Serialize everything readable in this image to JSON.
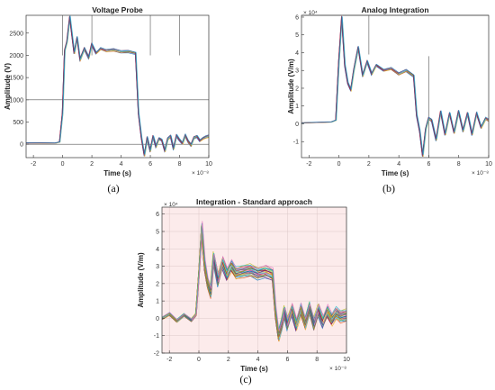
{
  "panel_captions": [
    "(a)",
    "(b)",
    "(c)"
  ],
  "chart_data": [
    {
      "type": "line",
      "title": "Voltage Probe",
      "xlabel": "Time (s)",
      "ylabel": "Amplitude (V)",
      "x_exponent_label": "× 10⁻⁸",
      "y_exponent_label": "",
      "xlim": [
        -2.5,
        10
      ],
      "ylim": [
        -300,
        2900
      ],
      "x_ticks": [
        -2,
        0,
        2,
        4,
        6,
        8,
        10
      ],
      "y_ticks": [
        0,
        500,
        1000,
        1500,
        2000,
        2500
      ],
      "x_tick_labels": [
        "-2",
        "0",
        "2",
        "4",
        "6",
        "8",
        "10"
      ],
      "y_tick_labels": [
        "0",
        "500",
        "1000",
        "1500",
        "2000",
        "2500"
      ],
      "background": "#ffffff",
      "series_colors": [
        "#0072bd",
        "#d95319",
        "#edb120",
        "#7e2f8e",
        "#77ac30",
        "#4dbeee",
        "#a2142f",
        "#1f77b4"
      ],
      "n_series": 8,
      "spread": 25,
      "hlines": [
        0,
        1000
      ],
      "vlines": [
        {
          "x": 0,
          "y_top": 2900,
          "y_bottom": 2000
        },
        {
          "x": 2,
          "y_top": 2900,
          "y_bottom": 2000
        },
        {
          "x": 6,
          "y_top": 2900,
          "y_bottom": 2000
        },
        {
          "x": 8,
          "y_top": 2900,
          "y_bottom": 2000
        }
      ],
      "x": [
        -2.5,
        -1.5,
        -0.5,
        -0.2,
        0,
        0.15,
        0.3,
        0.5,
        0.8,
        1.0,
        1.2,
        1.5,
        1.8,
        2.0,
        2.3,
        2.6,
        3.0,
        3.5,
        4.0,
        4.5,
        5.0,
        5.2,
        5.4,
        5.6,
        5.8,
        6.0,
        6.2,
        6.4,
        6.6,
        6.8,
        7.0,
        7.2,
        7.4,
        7.6,
        7.8,
        8.0,
        8.2,
        8.4,
        8.6,
        8.8,
        9.0,
        9.2,
        9.4,
        9.6,
        9.8,
        10.0
      ],
      "y": [
        30,
        30,
        25,
        50,
        700,
        2100,
        2300,
        2870,
        2050,
        2400,
        1900,
        2150,
        1950,
        2250,
        2050,
        2150,
        2100,
        2120,
        2080,
        2090,
        2050,
        700,
        150,
        -250,
        150,
        -150,
        180,
        -50,
        130,
        90,
        -150,
        120,
        180,
        -100,
        200,
        100,
        20,
        200,
        60,
        -20,
        150,
        180,
        80,
        130,
        160,
        180
      ]
    },
    {
      "type": "line",
      "title": "Analog Integration",
      "xlabel": "Time (s)",
      "ylabel": "Amplitude (V/m)",
      "x_exponent_label": "× 10⁻⁸",
      "y_exponent_label": "× 10⁴",
      "xlim": [
        -2.5,
        10
      ],
      "ylim": [
        -1.9,
        6.1
      ],
      "x_ticks": [
        -2,
        0,
        2,
        4,
        6,
        8,
        10
      ],
      "y_ticks": [
        -1,
        0,
        1,
        2,
        3,
        4,
        5,
        6
      ],
      "x_tick_labels": [
        "-2",
        "0",
        "2",
        "4",
        "6",
        "8",
        "10"
      ],
      "y_tick_labels": [
        "-1",
        "0",
        "1",
        "2",
        "3",
        "4",
        "5",
        "6"
      ],
      "background": "#ffffff",
      "series_colors": [
        "#0072bd",
        "#d95319",
        "#edb120",
        "#7e2f8e",
        "#77ac30",
        "#4dbeee",
        "#a2142f",
        "#1f77b4"
      ],
      "n_series": 8,
      "spread": 0.06,
      "hlines": [
        6.1
      ],
      "vlines": [
        {
          "x": 2,
          "y_top": 6.1,
          "y_bottom": 3.9
        },
        {
          "x": 6,
          "y_top": 3.8,
          "y_bottom": -1.9
        }
      ],
      "x": [
        -2.5,
        -1.5,
        -0.5,
        -0.2,
        0,
        0.2,
        0.4,
        0.6,
        0.8,
        1.0,
        1.3,
        1.6,
        1.9,
        2.2,
        2.5,
        3.0,
        3.5,
        4.0,
        4.5,
        5.0,
        5.2,
        5.4,
        5.6,
        5.8,
        6.0,
        6.2,
        6.5,
        6.8,
        7.1,
        7.4,
        7.7,
        8.0,
        8.3,
        8.6,
        8.9,
        9.2,
        9.5,
        9.8,
        10.0
      ],
      "y": [
        0.05,
        0.08,
        0.1,
        0.2,
        3.5,
        6.0,
        3.3,
        2.3,
        1.9,
        3.0,
        4.3,
        2.7,
        3.5,
        2.8,
        3.3,
        3.0,
        3.1,
        2.8,
        3.0,
        2.7,
        0.5,
        -0.4,
        -1.8,
        -0.3,
        0.3,
        0.2,
        -0.9,
        0.7,
        -0.6,
        0.6,
        -0.5,
        0.7,
        -0.4,
        0.6,
        -0.6,
        0.6,
        -0.2,
        0.3,
        0.2
      ]
    },
    {
      "type": "line",
      "title": "Integration  -  Standard approach",
      "xlabel": "Time (s)",
      "ylabel": "Amplitude (V/m)",
      "x_exponent_label": "× 10⁻⁸",
      "y_exponent_label": "× 10⁴",
      "xlim": [
        -2.5,
        10
      ],
      "ylim": [
        -2,
        6.4
      ],
      "x_ticks": [
        -2,
        0,
        2,
        4,
        6,
        8,
        10
      ],
      "y_ticks": [
        -2,
        -1,
        0,
        1,
        2,
        3,
        4,
        5,
        6
      ],
      "x_tick_labels": [
        "-2",
        "0",
        "2",
        "4",
        "6",
        "8",
        "10"
      ],
      "y_tick_labels": [
        "-2",
        "-1",
        "0",
        "1",
        "2",
        "3",
        "4",
        "5",
        "6"
      ],
      "background": "#fcebeb",
      "grid": true,
      "series_colors": [
        "#0072bd",
        "#d95319",
        "#edb120",
        "#7e2f8e",
        "#77ac30",
        "#4dbeee",
        "#a2142f",
        "#1f77b4",
        "#8c564b",
        "#bcbd22",
        "#17becf",
        "#e377c2"
      ],
      "n_series": 24,
      "spread": 0.3,
      "hlines": [],
      "vlines": [],
      "x": [
        -2.5,
        -2.0,
        -1.5,
        -1.0,
        -0.5,
        -0.2,
        0,
        0.2,
        0.4,
        0.6,
        0.8,
        1.0,
        1.3,
        1.6,
        1.9,
        2.2,
        2.5,
        3.0,
        3.5,
        4.0,
        4.5,
        5.0,
        5.2,
        5.4,
        5.6,
        5.8,
        6.0,
        6.3,
        6.6,
        6.9,
        7.2,
        7.5,
        7.8,
        8.1,
        8.4,
        8.7,
        9.0,
        9.3,
        9.6,
        10.0
      ],
      "y": [
        0.0,
        0.25,
        -0.15,
        0.2,
        -0.1,
        0.2,
        2.5,
        5.2,
        3.0,
        2.0,
        1.5,
        3.5,
        2.2,
        3.2,
        2.5,
        3.0,
        2.6,
        2.7,
        2.8,
        2.6,
        2.7,
        2.5,
        0.3,
        -1.0,
        -0.4,
        0.4,
        -0.3,
        0.5,
        -0.4,
        0.5,
        -0.3,
        0.6,
        -0.3,
        0.5,
        -0.2,
        0.4,
        -0.1,
        0.3,
        0.1,
        0.2
      ]
    }
  ]
}
